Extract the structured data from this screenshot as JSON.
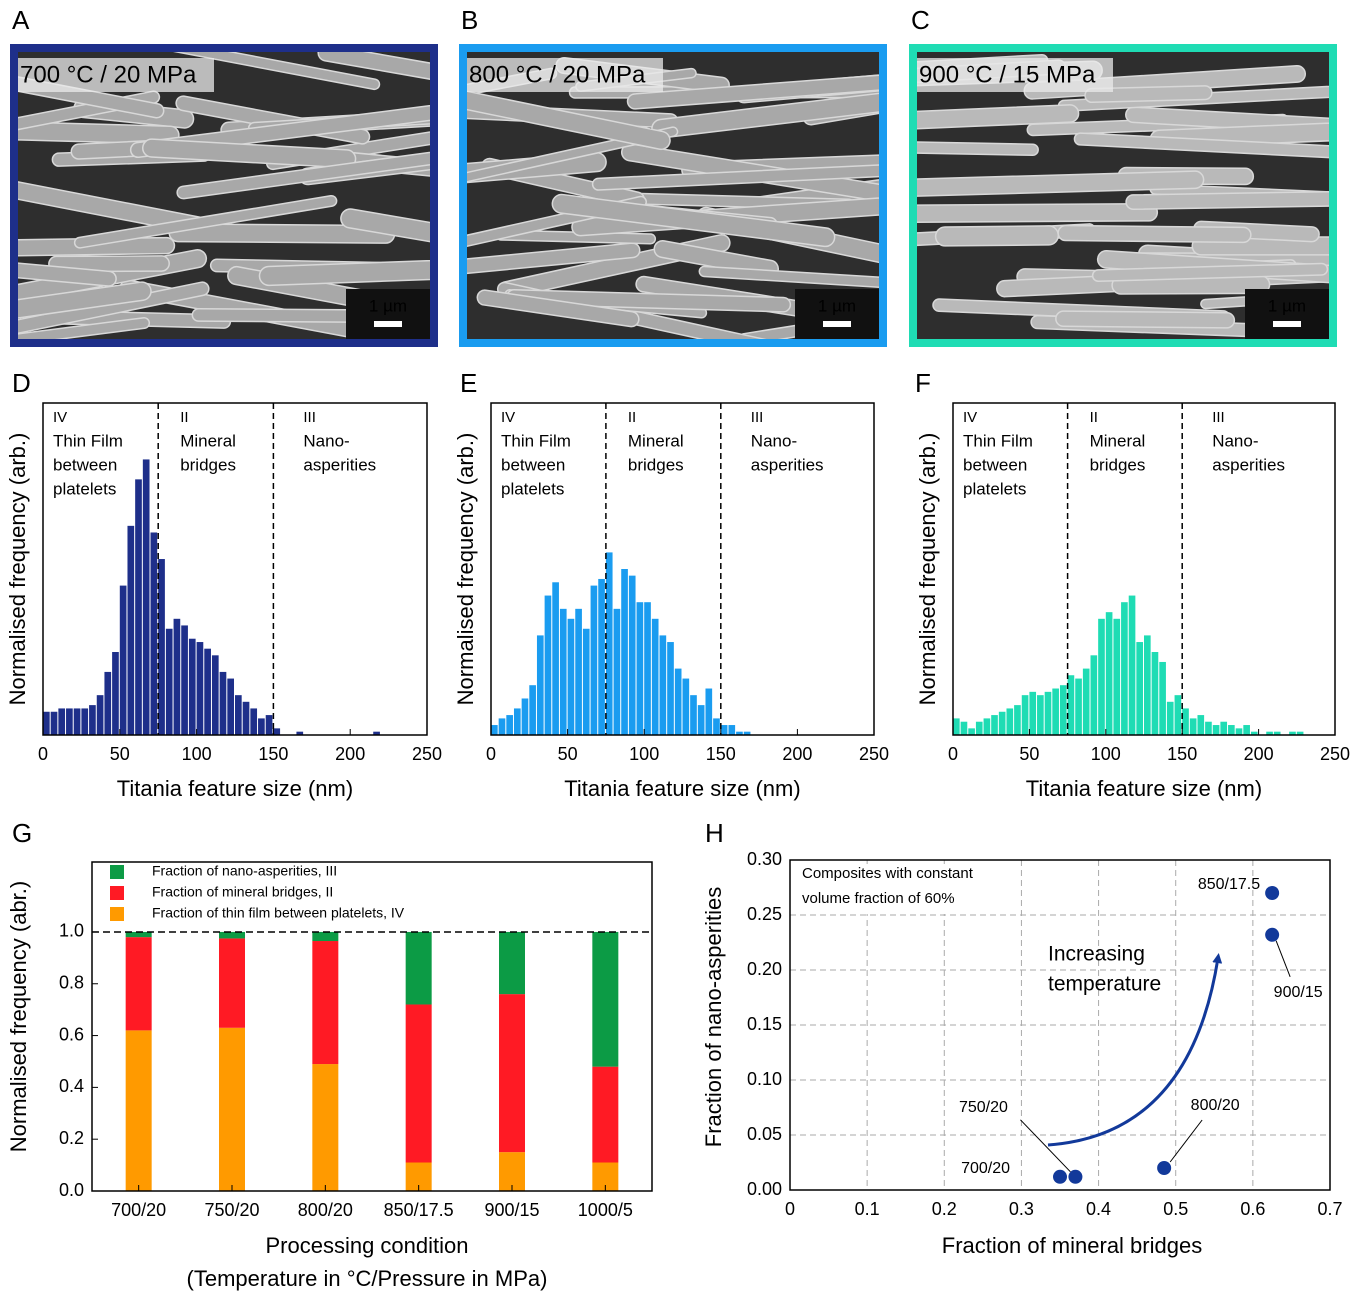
{
  "images": [
    {
      "panel": "A",
      "label": "700 °C / 20 MPa",
      "scale": "1 µm",
      "border": "#1e2f8a"
    },
    {
      "panel": "B",
      "label": "800 °C / 20 MPa",
      "scale": "1 µm",
      "border": "#1a9cf0"
    },
    {
      "panel": "C",
      "label": "900 °C / 15 MPa",
      "scale": "1 µm",
      "border": "#1fdcb4"
    }
  ],
  "chart_data": [
    {
      "type": "histogram",
      "panel": "D",
      "color": "#1e2f8a",
      "bins": [
        0,
        5,
        10,
        15,
        20,
        25,
        30,
        35,
        40,
        45,
        50,
        55,
        60,
        65,
        70,
        75,
        80,
        85,
        90,
        95,
        100,
        105,
        110,
        115,
        120,
        125,
        130,
        135,
        140,
        145,
        150,
        155,
        160,
        165,
        170,
        175,
        180,
        185,
        190,
        195,
        200,
        205,
        210,
        215,
        220
      ],
      "counts": [
        7,
        7,
        8,
        8,
        8,
        8,
        9,
        12,
        19,
        25,
        45,
        63,
        77,
        83,
        61,
        53,
        32,
        35,
        33,
        29,
        28,
        26,
        24,
        19,
        17,
        12,
        10,
        8,
        5,
        6,
        2,
        0,
        0,
        1,
        0,
        0,
        0,
        0,
        0,
        0,
        0,
        0,
        0,
        1
      ],
      "xlim": [
        0,
        250
      ],
      "xticks": [
        0,
        50,
        100,
        150,
        200,
        250
      ],
      "ylim": [
        0,
        100
      ],
      "xlabel": "Titania feature size (nm)",
      "ylabel": "Normalised frequency (arb.)",
      "dividers": [
        75,
        150
      ],
      "regions": [
        [
          "IV",
          "Thin Film",
          "between",
          "platelets"
        ],
        [
          "II",
          "Mineral",
          "bridges"
        ],
        [
          "III",
          "Nano-",
          "asperities"
        ]
      ]
    },
    {
      "type": "histogram",
      "panel": "E",
      "color": "#1a9cf0",
      "bins": [
        0,
        5,
        10,
        15,
        20,
        25,
        30,
        35,
        40,
        45,
        50,
        55,
        60,
        65,
        70,
        75,
        80,
        85,
        90,
        95,
        100,
        105,
        110,
        115,
        120,
        125,
        130,
        135,
        140,
        145,
        150,
        155,
        160,
        165,
        170
      ],
      "counts": [
        3,
        5,
        6,
        8,
        11,
        15,
        30,
        42,
        46,
        38,
        35,
        38,
        32,
        45,
        47,
        55,
        38,
        50,
        48,
        40,
        40,
        35,
        30,
        28,
        20,
        17,
        12,
        9,
        14,
        5,
        3,
        3,
        1,
        1
      ],
      "xlim": [
        0,
        250
      ],
      "xticks": [
        0,
        50,
        100,
        150,
        200,
        250
      ],
      "ylim": [
        0,
        100
      ],
      "xlabel": "Titania feature size (nm)",
      "ylabel": "Normalised frequency (arb.)",
      "dividers": [
        75,
        150
      ],
      "regions": [
        [
          "IV",
          "Thin Film",
          "between",
          "platelets"
        ],
        [
          "II",
          "Mineral",
          "bridges"
        ],
        [
          "III",
          "Nano-",
          "asperities"
        ]
      ]
    },
    {
      "type": "histogram",
      "panel": "F",
      "color": "#1fdcb4",
      "bins": [
        0,
        5,
        10,
        15,
        20,
        25,
        30,
        35,
        40,
        45,
        50,
        55,
        60,
        65,
        70,
        75,
        80,
        85,
        90,
        95,
        100,
        105,
        110,
        115,
        120,
        125,
        130,
        135,
        140,
        145,
        150,
        155,
        160,
        165,
        170,
        175,
        180,
        185,
        190,
        195,
        200,
        205,
        210,
        215,
        220,
        225,
        230
      ],
      "counts": [
        5,
        4,
        2,
        4,
        5,
        6,
        7,
        8,
        9,
        12,
        13,
        12,
        13,
        14,
        15,
        18,
        17,
        20,
        24,
        35,
        37,
        35,
        40,
        42,
        28,
        30,
        25,
        22,
        10,
        12,
        8,
        5,
        6,
        4,
        3,
        4,
        3,
        2,
        3,
        1,
        0,
        1,
        1,
        0,
        1,
        1
      ],
      "xlim": [
        0,
        250
      ],
      "xticks": [
        0,
        50,
        100,
        150,
        200,
        250
      ],
      "ylim": [
        0,
        100
      ],
      "xlabel": "Titania feature size (nm)",
      "ylabel": "Normalised frequency (arb.)",
      "dividers": [
        75,
        150
      ],
      "regions": [
        [
          "IV",
          "Thin Film",
          "between",
          "platelets"
        ],
        [
          "II",
          "Mineral",
          "bridges"
        ],
        [
          "III",
          "Nano-",
          "asperities"
        ]
      ]
    },
    {
      "type": "stacked_bar",
      "panel": "G",
      "categories": [
        "700/20",
        "750/20",
        "800/20",
        "850/17.5",
        "900/15",
        "1000/5"
      ],
      "series": [
        {
          "name": "Fraction of thin film between platelets, IV",
          "color": "#ff9a00",
          "values": [
            0.62,
            0.63,
            0.49,
            0.11,
            0.15,
            0.11
          ]
        },
        {
          "name": "Fraction of mineral bridges, II",
          "color": "#ff1a24",
          "values": [
            0.36,
            0.345,
            0.475,
            0.61,
            0.61,
            0.37
          ]
        },
        {
          "name": "Fraction of nano-asperities, III",
          "color": "#0c9b45",
          "values": [
            0.02,
            0.025,
            0.035,
            0.28,
            0.24,
            0.52
          ]
        }
      ],
      "ylim": [
        0,
        1.27
      ],
      "yticks": [
        {
          "value": 0,
          "label": "0.0"
        },
        0.2,
        0.4,
        0.6,
        0.8,
        {
          "value": 1,
          "label": "1.0"
        }
      ],
      "hline": 1,
      "legend": "upper left",
      "xlabel": [
        "Processing condition",
        "(Temperature in °C/Pressure in MPa)"
      ],
      "ylabel": "Normalised frequency (abr.)"
    },
    {
      "type": "scatter",
      "panel": "H",
      "color": "#12399a",
      "x": [
        0.35,
        0.37,
        0.485,
        0.625,
        0.625
      ],
      "y": [
        0.012,
        0.012,
        0.02,
        0.27,
        0.232
      ],
      "point_labels": [
        "700/20",
        "750/20",
        "800/20",
        "850/17.5",
        "900/15"
      ],
      "xlim": [
        0,
        0.7
      ],
      "xticks": [
        0,
        0.1,
        0.2,
        0.3,
        0.4,
        0.5,
        0.6,
        0.7
      ],
      "ylim": [
        0,
        0.3
      ],
      "yticks": [
        {
          "value": 0,
          "label": "0.00"
        },
        0.05,
        {
          "value": 0.1,
          "label": "0.10"
        },
        0.15,
        {
          "value": 0.2,
          "label": "0.20"
        },
        0.25,
        {
          "value": 0.3,
          "label": "0.30"
        }
      ],
      "grid": true,
      "xlabel": "Fraction of mineral bridges",
      "ylabel": "Fraction of nano-asperities",
      "annotations": [
        "Composites with constant",
        "volume fraction of 60%",
        "Increasing",
        "temperature"
      ]
    }
  ]
}
